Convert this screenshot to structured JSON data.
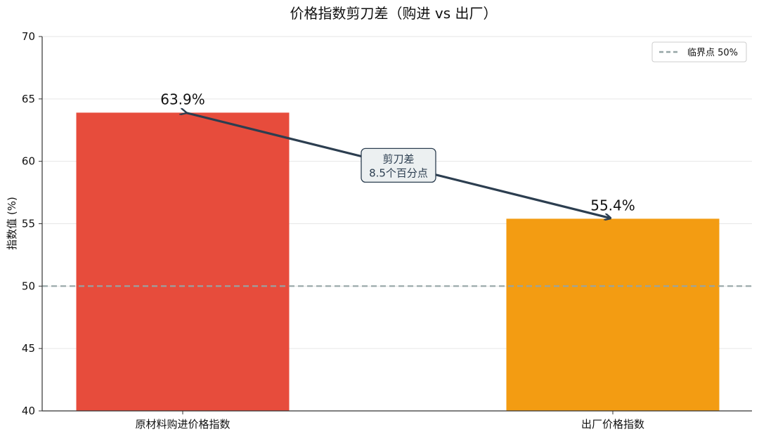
{
  "chart_data": {
    "type": "bar",
    "title": "价格指数剪刀差（购进 vs 出厂）",
    "ylabel": "指数值 (%)",
    "xlabel": "",
    "ylim": [
      40,
      70
    ],
    "yticks": [
      40,
      45,
      50,
      55,
      60,
      65,
      70
    ],
    "categories": [
      "原材料购进价格指数",
      "出厂价格指数"
    ],
    "values": [
      63.9,
      55.4
    ],
    "value_labels": [
      "63.9%",
      "55.4%"
    ],
    "bar_colors": [
      "#e74c3c",
      "#f39c12"
    ],
    "reference_line": {
      "value": 50,
      "label": "临界点 50%",
      "color": "#95a5a6",
      "style": "dashed"
    },
    "annotation": {
      "line1": "剪刀差",
      "line2": "8.5个百分点",
      "arrow_color": "#2c3e50",
      "box_fill": "#ecf0f1"
    },
    "grid": true,
    "legend_position": "top-right"
  }
}
